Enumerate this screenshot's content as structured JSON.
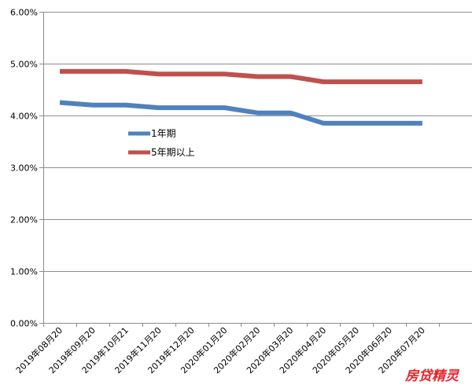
{
  "chart_data": {
    "type": "line",
    "categories": [
      "2019年08月20",
      "2019年09月20",
      "2019年10月21",
      "2019年11月20",
      "2019年12月20",
      "2020年01月20",
      "2020年02月20",
      "2020年03月20",
      "2020年04月20",
      "2020年05月20",
      "2020年06月20",
      "2020年07月20"
    ],
    "series": [
      {
        "name": "1年期",
        "color": "#4f81bd",
        "values": [
          4.25,
          4.2,
          4.2,
          4.15,
          4.15,
          4.15,
          4.05,
          4.05,
          3.85,
          3.85,
          3.85,
          3.85
        ]
      },
      {
        "name": "5年期以上",
        "color": "#c0504d",
        "values": [
          4.85,
          4.85,
          4.85,
          4.8,
          4.8,
          4.8,
          4.75,
          4.75,
          4.65,
          4.65,
          4.65,
          4.65
        ]
      }
    ],
    "ylim": [
      0,
      6
    ],
    "yticks": [
      "0.00%",
      "1.00%",
      "2.00%",
      "3.00%",
      "4.00%",
      "5.00%",
      "6.00%"
    ],
    "grid": "horizontal",
    "legend": "inside-left"
  },
  "watermark": "房贷精灵"
}
